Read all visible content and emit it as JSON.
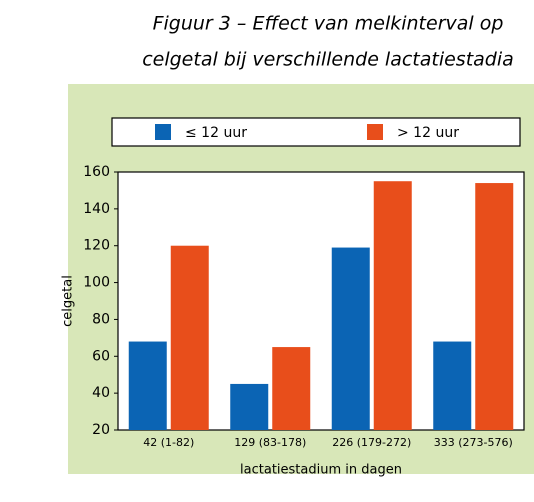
{
  "chart_data": {
    "type": "bar",
    "title": [
      "Figuur 3 – Effect van melkinterval op",
      "celgetal bij verschillende lactatiestadia"
    ],
    "categories": [
      "42 (1-82)",
      "129 (83-178)",
      "226 (179-272)",
      "333 (273-576)"
    ],
    "series": [
      {
        "name": "≤ 12 uur",
        "color": "#0b64b4",
        "values": [
          68,
          45,
          119,
          68
        ]
      },
      {
        "name": "> 12 uur",
        "color": "#e84e1b",
        "values": [
          120,
          65,
          155,
          154
        ]
      }
    ],
    "ylim": [
      20,
      160
    ],
    "yticks": [
      20,
      40,
      60,
      80,
      100,
      120,
      140,
      160
    ],
    "y_label": "celgetal",
    "x_label": "lactatiestadium in dagen",
    "legend": "top",
    "grid": false
  }
}
